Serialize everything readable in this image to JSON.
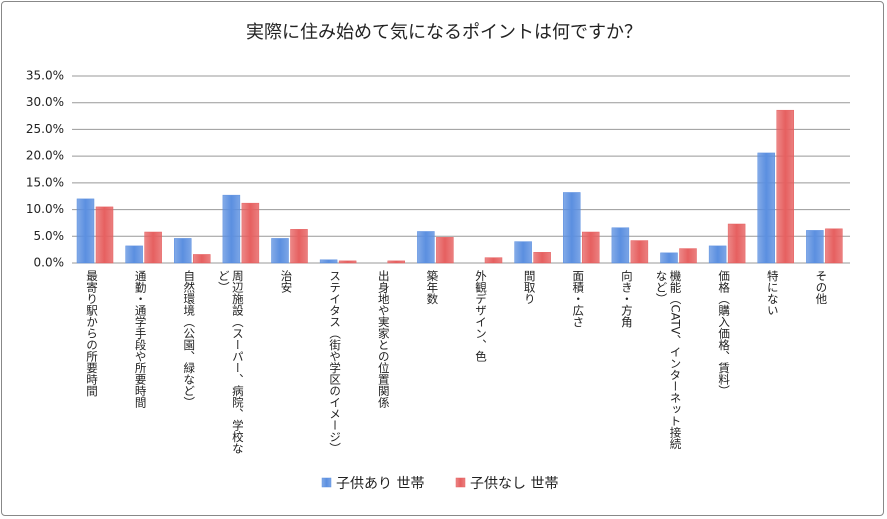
{
  "chart_data": {
    "type": "bar",
    "title": "実際に住み始めて気になるポイントは何ですか？",
    "categories": [
      "最寄り駅からの所要時間",
      "通勤・通学手段や所要時間",
      "自然環境（公園、緑など）",
      "周辺施設（スーパー、病院、学校など）",
      "治安",
      "ステイタス（街や学区のイメージ）",
      "出身地や実家との位置関係",
      "築年数",
      "外観デザイン、色",
      "間取り",
      "面積・広さ",
      "向き・方角",
      "機能（CATV、インターネット接続など）",
      "価格（購入価格、賃料）",
      "特にない",
      "その他"
    ],
    "series": [
      {
        "name": "子供あり 世帯",
        "color": "#5b8fe0",
        "values": [
          12.0,
          3.2,
          4.6,
          12.7,
          4.6,
          0.6,
          0,
          5.9,
          0,
          4.0,
          13.2,
          6.6,
          1.9,
          3.2,
          20.6,
          6.1
        ]
      },
      {
        "name": "子供なし 世帯",
        "color": "#e66060",
        "values": [
          10.5,
          5.8,
          1.6,
          11.2,
          6.3,
          0.4,
          0.4,
          4.8,
          1.0,
          2.0,
          5.8,
          4.2,
          2.7,
          7.3,
          28.6,
          6.4
        ]
      }
    ],
    "ylim": [
      0,
      35
    ],
    "yticks": [
      {
        "value": 0,
        "label": "0.0%"
      },
      {
        "value": 5,
        "label": "5.0%"
      },
      {
        "value": 10,
        "label": "10.0%"
      },
      {
        "value": 15,
        "label": "15.0%"
      },
      {
        "value": 20,
        "label": "20.0%"
      },
      {
        "value": 25,
        "label": "25.0%"
      },
      {
        "value": 30,
        "label": "30.0%"
      },
      {
        "value": 35,
        "label": "35.0%"
      }
    ],
    "grid": true,
    "legend": "bottom"
  }
}
